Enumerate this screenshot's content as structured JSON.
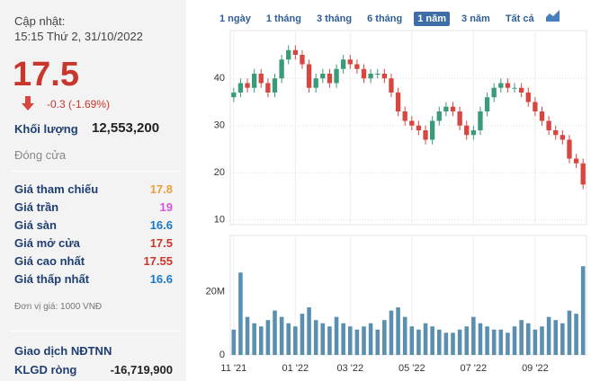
{
  "header": {
    "updated_label": "Cập nhật:",
    "updated_time": "15:15 Thứ 2, 31/10/2022"
  },
  "quote": {
    "price": "17.5",
    "change": "-0.3 (-1.69%)",
    "volume_label": "Khối lượng",
    "volume": "12,553,200",
    "status": "Đóng cửa",
    "rows": [
      [
        "Giá tham chiếu",
        "17.8",
        "#e8a13a"
      ],
      [
        "Giá trần",
        "19",
        "#d455d6"
      ],
      [
        "Giá sàn",
        "16.6",
        "#1b78c4"
      ],
      [
        "Giá mở cửa",
        "17.5",
        "#c9372c"
      ],
      [
        "Giá cao nhất",
        "17.55",
        "#c9372c"
      ],
      [
        "Giá thấp nhất",
        "16.6",
        "#1b78c4"
      ]
    ],
    "unit": "Đơn vị giá: 1000 VNĐ",
    "foreign_title": "Giao dịch NĐTNN",
    "net_label": "KLGD ròng",
    "net_value": "-16,719,900"
  },
  "range_buttons": [
    "1 ngày",
    "1 tháng",
    "3 tháng",
    "6 tháng",
    "1 năm",
    "3 năm",
    "Tất cả"
  ],
  "active_range": 4,
  "chart_data": [
    {
      "type": "candlestick",
      "up_color": "#3a9b78",
      "down_color": "#d8463f",
      "ylim": [
        9,
        49
      ],
      "yticks": [
        10,
        20,
        30,
        40
      ],
      "grid": true,
      "open": [
        36,
        37,
        39,
        38,
        41,
        39,
        37,
        40,
        44,
        46,
        45,
        43,
        38,
        40,
        41,
        39,
        42,
        44,
        43,
        42,
        40,
        41,
        41,
        40,
        37,
        33,
        31,
        30,
        29,
        27,
        31,
        33,
        34,
        33,
        30,
        28,
        29,
        33,
        36,
        38,
        39,
        38,
        38,
        37,
        35,
        33,
        31,
        29,
        28,
        27,
        23,
        22
      ],
      "high": [
        38,
        40,
        40,
        42,
        42,
        40,
        41,
        45,
        47,
        47,
        46,
        44,
        41,
        42,
        42,
        43,
        45,
        45,
        44,
        43,
        42,
        42,
        42,
        41,
        38,
        34,
        32,
        31,
        30,
        32,
        34,
        35,
        35,
        34,
        31,
        30,
        34,
        37,
        39,
        40,
        40,
        39,
        39,
        38,
        36,
        34,
        32,
        30,
        29,
        28,
        24,
        23
      ],
      "low": [
        35,
        36,
        37,
        37,
        38,
        36,
        36,
        39,
        43,
        44,
        42,
        37,
        37,
        39,
        38,
        38,
        41,
        42,
        41,
        39,
        39,
        40,
        39,
        36,
        32,
        30,
        29,
        28,
        26,
        26,
        30,
        32,
        32,
        29,
        27,
        27,
        28,
        32,
        35,
        37,
        37,
        37,
        36,
        34,
        32,
        30,
        28,
        27,
        26,
        22,
        21,
        16.5
      ],
      "close": [
        37,
        39,
        38,
        41,
        39,
        37,
        40,
        44,
        46,
        45,
        43,
        38,
        40,
        41,
        39,
        42,
        44,
        43,
        42,
        40,
        41,
        41,
        40,
        37,
        33,
        31,
        30,
        29,
        27,
        31,
        33,
        34,
        33,
        30,
        28,
        29,
        33,
        36,
        38,
        39,
        38,
        38,
        37,
        35,
        33,
        31,
        29,
        28,
        27,
        23,
        22,
        17.5
      ]
    },
    {
      "type": "bar",
      "color": "#5a8fb0",
      "ylim": [
        0,
        36
      ],
      "yticks": [
        0,
        {
          "value": 20,
          "label": "20M"
        }
      ],
      "categories": [
        "11 '21",
        null,
        null,
        null,
        null,
        null,
        null,
        null,
        null,
        "01 '22",
        null,
        null,
        null,
        null,
        null,
        null,
        null,
        "03 '22",
        null,
        null,
        null,
        null,
        null,
        null,
        null,
        null,
        "05 '22",
        null,
        null,
        null,
        null,
        null,
        null,
        null,
        null,
        "07 '22",
        null,
        null,
        null,
        null,
        null,
        null,
        null,
        null,
        "09 '22",
        null,
        null,
        null,
        null,
        null,
        null,
        null
      ],
      "values": [
        8,
        26,
        12,
        10,
        9,
        11,
        14,
        12,
        10,
        9,
        13,
        15,
        11,
        10,
        9,
        12,
        10,
        9,
        8,
        9,
        10,
        8,
        11,
        14,
        15,
        12,
        9,
        8,
        10,
        9,
        8,
        7,
        7,
        8,
        9,
        12,
        10,
        9,
        8,
        8,
        7,
        9,
        11,
        10,
        8,
        9,
        12,
        11,
        10,
        14,
        13,
        28
      ]
    }
  ]
}
